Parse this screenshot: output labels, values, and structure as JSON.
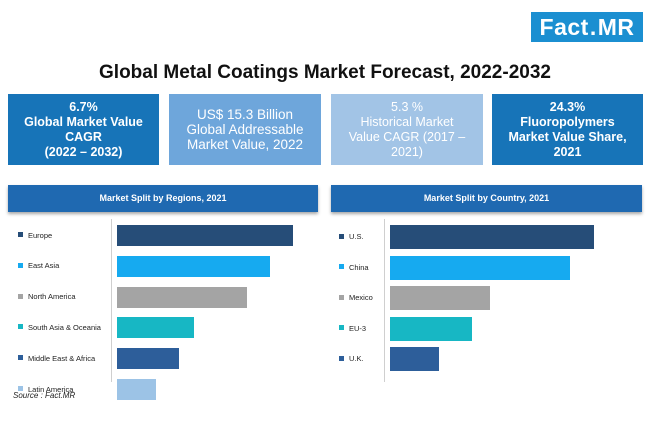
{
  "logo": {
    "part1": "Fact",
    "dot": ".",
    "part2": "MR"
  },
  "title": "Global Metal Coatings Market Forecast, 2022-2032",
  "kpis": [
    {
      "lines": [
        "6.7%",
        "Global Market Value",
        "CAGR",
        "(2022 – 2032)"
      ],
      "color": "#1774b8"
    },
    {
      "lines": [
        "US$ 15.3 Billion",
        "Global Addressable",
        "Market Value, 2022"
      ],
      "color": "#6ea6db"
    },
    {
      "lines": [
        "5.3 %",
        "Historical Market",
        "Value CAGR (2017 –",
        "2021)"
      ],
      "color": "#a2c4e6"
    },
    {
      "lines": [
        "24.3%",
        "Fluoropolymers",
        "Market Value Share,",
        "2021"
      ],
      "color": "#1774b8"
    }
  ],
  "source": "Source : Fact.MR",
  "colors": {
    "dark_navy": "#264d78",
    "bright_blue": "#16aaf0",
    "gray": "#a4a4a4",
    "teal": "#17b7c4",
    "mid_blue": "#2d5e9a",
    "light_blue": "#9cc3e6"
  },
  "chart_data": [
    {
      "type": "bar",
      "orientation": "horizontal",
      "title": "Market Split by Regions, 2021",
      "categories": [
        "Europe",
        "East Asia",
        "North America",
        "South Asia & Oceania",
        "Middle East & Africa",
        "Latin America"
      ],
      "values": [
        100,
        87,
        74,
        44,
        35,
        22
      ],
      "value_unit": "relative share (no axis shown)",
      "bar_colors": [
        "#264d78",
        "#16aaf0",
        "#a4a4a4",
        "#17b7c4",
        "#2d5e9a",
        "#9cc3e6"
      ],
      "xlim": [
        0,
        100
      ]
    },
    {
      "type": "bar",
      "orientation": "horizontal",
      "title": "Market Split by Country, 2021",
      "categories": [
        "U.S.",
        "China",
        "Mexico",
        "EU-3",
        "U.K."
      ],
      "values": [
        100,
        88,
        49,
        40,
        24
      ],
      "value_unit": "relative share (no axis shown)",
      "bar_colors": [
        "#264d78",
        "#16aaf0",
        "#a4a4a4",
        "#17b7c4",
        "#2d5e9a"
      ],
      "xlim": [
        0,
        100
      ]
    }
  ]
}
